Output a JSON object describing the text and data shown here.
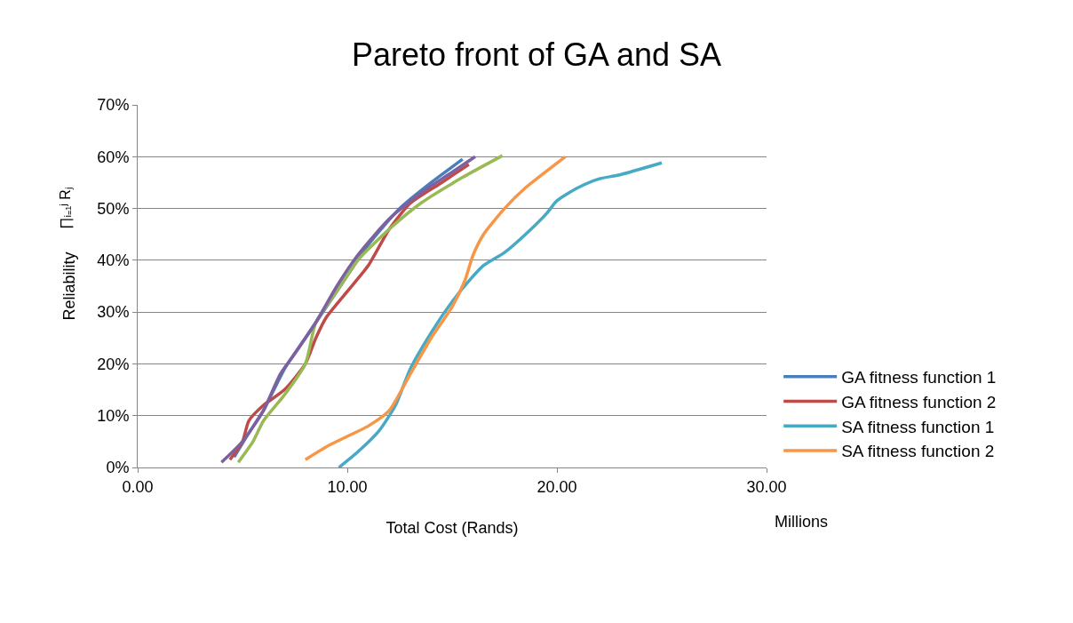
{
  "chart_data": {
    "type": "line",
    "title": "Pareto front of GA and SA",
    "xlabel": "Total Cost (Rands)",
    "ylabel": "Reliability",
    "annotations": [
      "∏ᵢ₌₁ʲ Rⱼ",
      "Millions"
    ],
    "xlim": [
      0,
      30
    ],
    "xticks": [
      {
        "value": 0,
        "label": "0.00"
      },
      {
        "value": 10,
        "label": "10.00"
      },
      {
        "value": 20,
        "label": "20.00"
      },
      {
        "value": 30,
        "label": "30.00"
      }
    ],
    "ylim": [
      0,
      70
    ],
    "yticks": [
      {
        "value": 0,
        "label": "0%"
      },
      {
        "value": 10,
        "label": "10%"
      },
      {
        "value": 20,
        "label": "20%"
      },
      {
        "value": 30,
        "label": "30%"
      },
      {
        "value": 40,
        "label": "40%"
      },
      {
        "value": 50,
        "label": "50%"
      },
      {
        "value": 60,
        "label": "60%"
      },
      {
        "value": 70,
        "label": "70%"
      }
    ],
    "grid": "y",
    "legend": "right",
    "marker": "none",
    "line_style": "solid",
    "series": [
      {
        "name": "GA fitness function 1",
        "color": "#4a7ebb",
        "x": [
          4.6,
          5.2,
          6.0,
          7.0,
          8.0,
          9.5,
          11.0,
          12.5,
          14.0,
          15.5
        ],
        "values": [
          2,
          6,
          11,
          19,
          25,
          34,
          43,
          50,
          55,
          59.5
        ]
      },
      {
        "name": "GA fitness function 2",
        "color": "#be4b48",
        "x": [
          4.4,
          5.0,
          5.3,
          6.0,
          7.0,
          8.0,
          8.5,
          9.0,
          10.0,
          11.0,
          12.0,
          13.0,
          14.5,
          15.8
        ],
        "values": [
          1.5,
          5,
          9,
          12,
          15,
          20,
          25,
          29,
          34,
          39,
          46,
          51,
          55,
          58.5
        ]
      },
      {
        "color": "#98b954",
        "x": [
          4.8,
          5.5,
          6.0,
          7.0,
          8.0,
          8.5,
          9.5,
          10.5,
          12.0,
          13.5,
          15.5,
          17.4
        ],
        "values": [
          1,
          5,
          9,
          14,
          20,
          28,
          34,
          40,
          46,
          51,
          56,
          60.2
        ]
      },
      {
        "color": "#7d60a0",
        "x": [
          4.0,
          5.0,
          6.0,
          6.8,
          7.5,
          8.5,
          9.5,
          10.5,
          12.0,
          13.5,
          15.0,
          16.1
        ],
        "values": [
          1,
          5,
          11,
          18,
          22,
          28,
          35,
          41,
          48,
          53,
          57,
          60
        ]
      },
      {
        "name": "SA fitness function 1",
        "color": "#46aac5",
        "x": [
          9.6,
          10.5,
          11.5,
          12.3,
          13.0,
          14.0,
          15.0,
          15.8,
          16.5,
          17.5,
          18.5,
          19.5,
          20.0,
          21.0,
          22.0,
          23.0,
          25.0
        ],
        "values": [
          0,
          3,
          7,
          12,
          19,
          26,
          32,
          36,
          39,
          41.5,
          45,
          49,
          51.5,
          54,
          55.7,
          56.5,
          58.8
        ]
      },
      {
        "name": "SA fitness function 2",
        "color": "#f79646",
        "x": [
          8.0,
          9.0,
          10.0,
          11.0,
          12.0,
          13.0,
          14.0,
          15.0,
          15.6,
          16.0,
          16.5,
          17.5,
          18.5,
          20.4
        ],
        "values": [
          1.5,
          4,
          6,
          8,
          11,
          18,
          25,
          31,
          36,
          41,
          45,
          50,
          54,
          60
        ]
      }
    ]
  }
}
